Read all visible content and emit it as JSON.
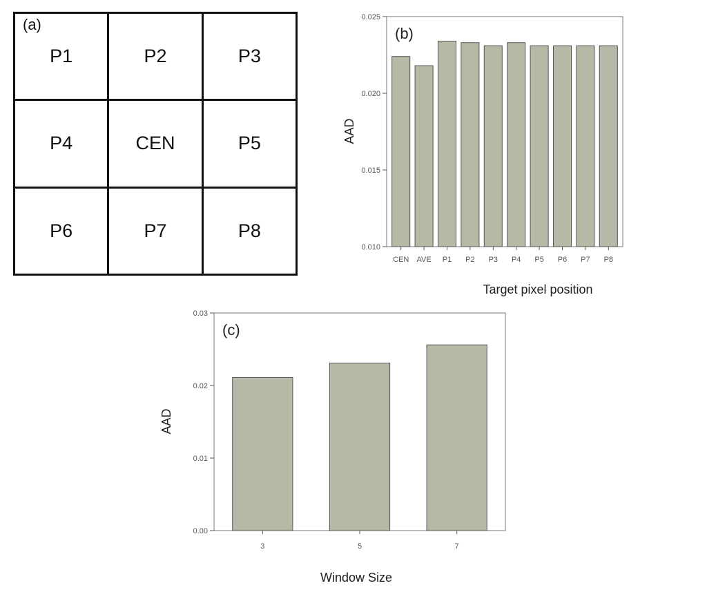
{
  "grid": {
    "label": "(a)",
    "rows": [
      [
        "P1",
        "P2",
        "P3"
      ],
      [
        "P4",
        "CEN",
        "P5"
      ],
      [
        "P6",
        "P7",
        "P8"
      ]
    ]
  },
  "chart_data": [
    {
      "type": "bar",
      "panel_label": "(b)",
      "categories": [
        "CEN",
        "AVE",
        "P1",
        "P2",
        "P3",
        "P4",
        "P5",
        "P6",
        "P7",
        "P8"
      ],
      "values": [
        0.0224,
        0.0218,
        0.0234,
        0.0233,
        0.0231,
        0.0233,
        0.0231,
        0.0231,
        0.0231,
        0.0231
      ],
      "xlabel": "Target pixel position",
      "ylabel": "AAD",
      "ylim": [
        0.01,
        0.025
      ],
      "yticks": [
        "0.010",
        "0.015",
        "0.020",
        "0.025"
      ],
      "grid": false
    },
    {
      "type": "bar",
      "panel_label": "(c)",
      "categories": [
        "3",
        "5",
        "7"
      ],
      "values": [
        0.0211,
        0.0231,
        0.0256
      ],
      "xlabel": "Window Size",
      "ylabel": "AAD",
      "ylim": [
        0.0,
        0.03
      ],
      "yticks": [
        "0.00",
        "0.01",
        "0.02",
        "0.03"
      ],
      "grid": false
    }
  ]
}
